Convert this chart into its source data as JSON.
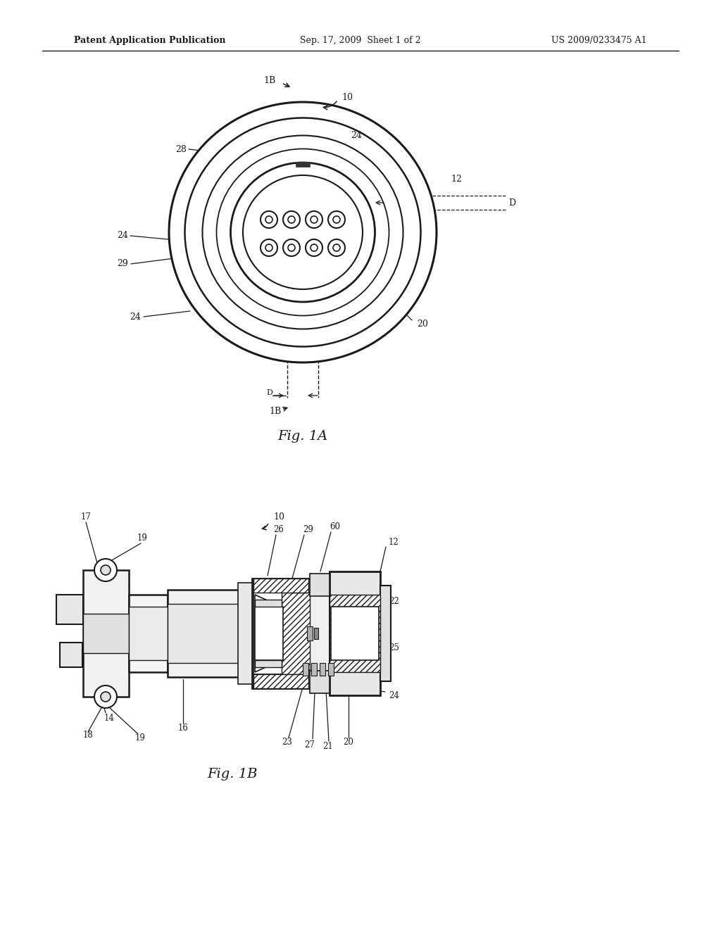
{
  "background_color": "#ffffff",
  "header_left": "Patent Application Publication",
  "header_center": "Sep. 17, 2009  Sheet 1 of 2",
  "header_right": "US 2009/0233475 A1",
  "fig1a_label": "Fig. 1A",
  "fig1b_label": "Fig. 1B",
  "line_color": "#1a1a1a",
  "text_color": "#1a1a1a"
}
